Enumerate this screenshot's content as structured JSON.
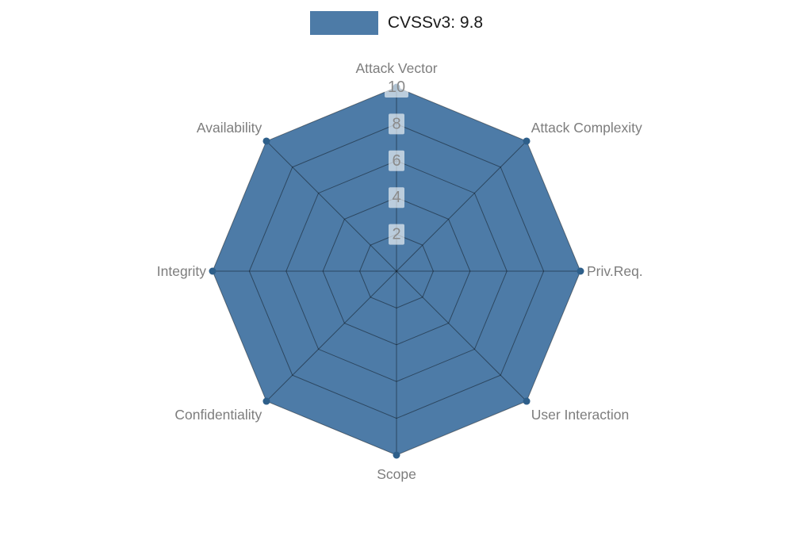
{
  "legend": {
    "label": "CVSSv3: 9.8",
    "swatch_color": "#4d7ba7"
  },
  "chart_data": {
    "type": "radar",
    "categories": [
      "Attack Vector",
      "Attack Complexity",
      "Priv.Req.",
      "User Interaction",
      "Scope",
      "Confidentiality",
      "Integrity",
      "Availability"
    ],
    "series": [
      {
        "name": "CVSSv3: 9.8",
        "values": [
          10,
          10,
          10,
          10,
          10,
          10,
          10,
          10
        ],
        "color": "#4d7ba7"
      }
    ],
    "ticks": [
      2,
      4,
      6,
      8,
      10
    ],
    "rlim": [
      0,
      10
    ],
    "grid": true,
    "legend_position": "top",
    "style": {
      "fill": "#4d7ba7",
      "point": "#2e5f8a",
      "grid": "rgba(0,0,0,0.42)",
      "axis_label": "#7d7d7d",
      "tick_label": "#8a8a8a",
      "tick_bg": "rgba(255,255,255,0.62)",
      "legend_text": "#1a1a1a"
    }
  }
}
